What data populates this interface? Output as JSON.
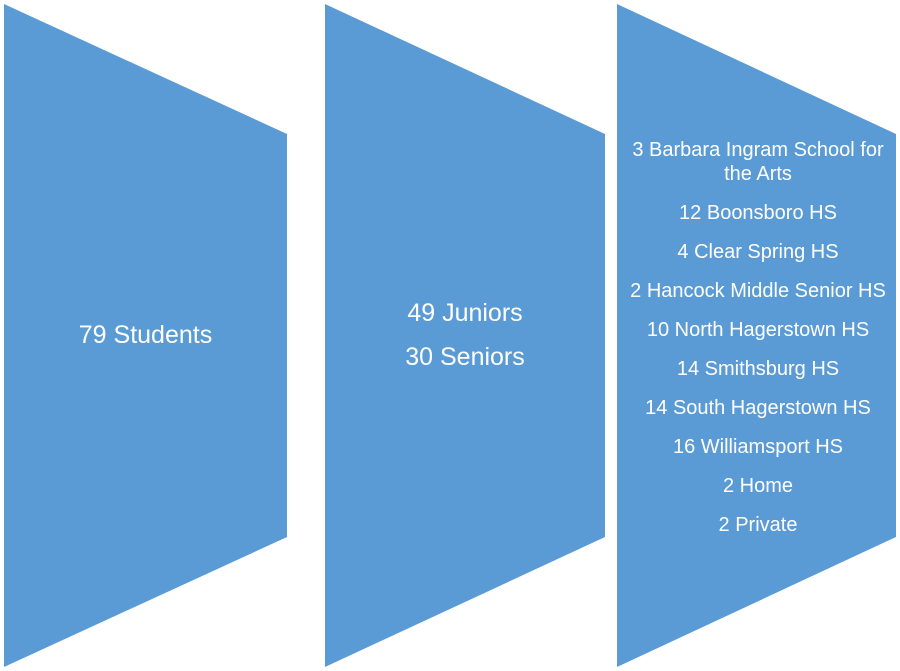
{
  "colors": {
    "chevron_fill": "#5b9bd5",
    "text": "#ffffff",
    "background": "#ffffff"
  },
  "steps": [
    {
      "lines": [
        "79 Students"
      ]
    },
    {
      "lines": [
        "49 Juniors",
        "30 Seniors"
      ]
    },
    {
      "lines": [
        "3 Barbara Ingram School for the Arts",
        "12 Boonsboro HS",
        "4 Clear Spring HS",
        "2 Hancock Middle Senior HS",
        "10 North Hagerstown HS",
        "14 Smithsburg HS",
        "14 South Hagerstown HS",
        "16 Williamsport HS",
        "2 Home",
        "2 Private"
      ]
    }
  ]
}
